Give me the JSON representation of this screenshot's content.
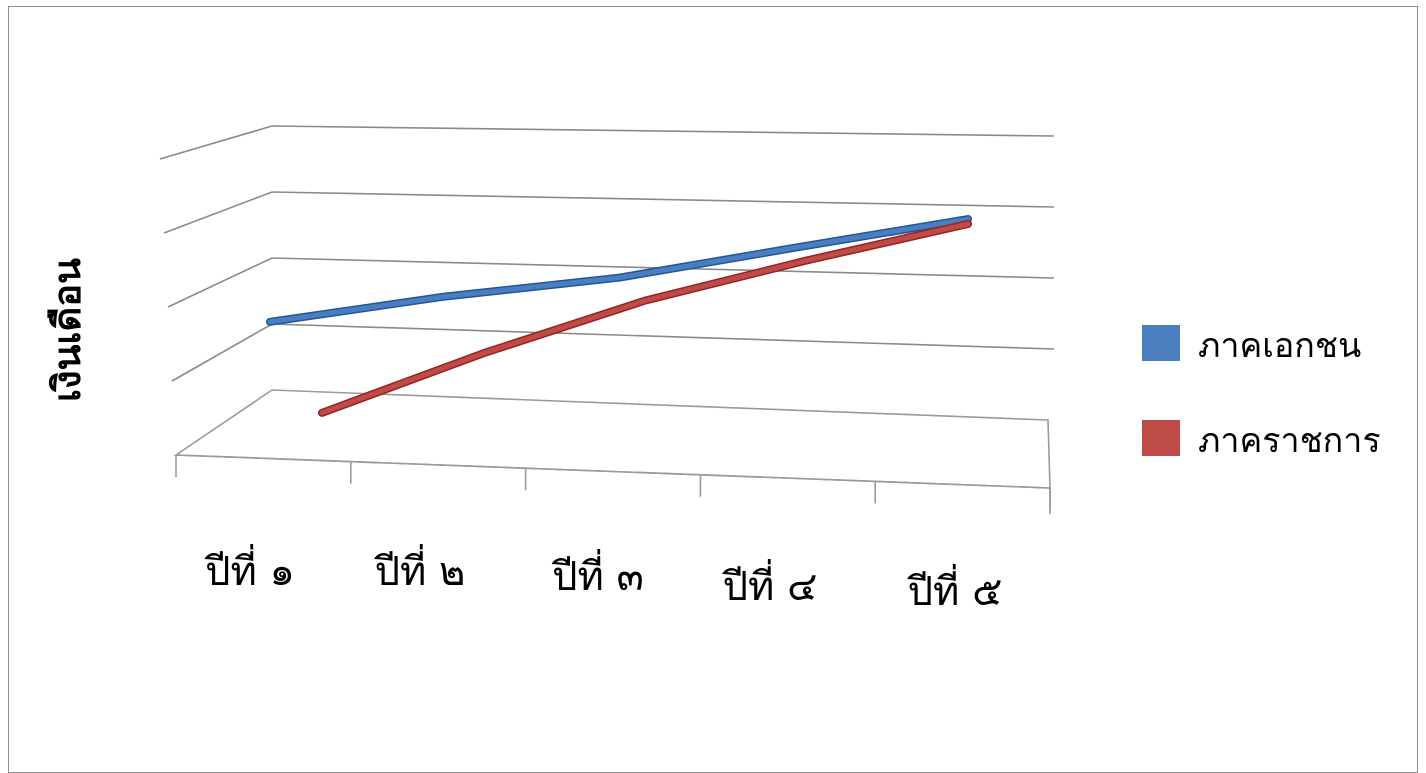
{
  "chart_data": {
    "type": "line",
    "title": "",
    "xlabel": "",
    "ylabel": "เงินเดือน",
    "categories": [
      "ปีที่ ๑",
      "ปีที่ ๒",
      "ปีที่ ๓",
      "ปีที่ ๔",
      "ปีที่ ๕"
    ],
    "series": [
      {
        "name": "ภาคเอกชน",
        "color": "#4a7ebf",
        "values": [
          2.25,
          2.55,
          2.75,
          3.15,
          3.55
        ]
      },
      {
        "name": "ภาคราชการ",
        "color": "#be4b48",
        "values": [
          1.05,
          1.85,
          2.55,
          3.05,
          3.5
        ]
      }
    ],
    "ylim": [
      0,
      5
    ],
    "y_tick_labels_visible": false,
    "grid": true,
    "legend_position": "right",
    "style": "3d-perspective"
  }
}
